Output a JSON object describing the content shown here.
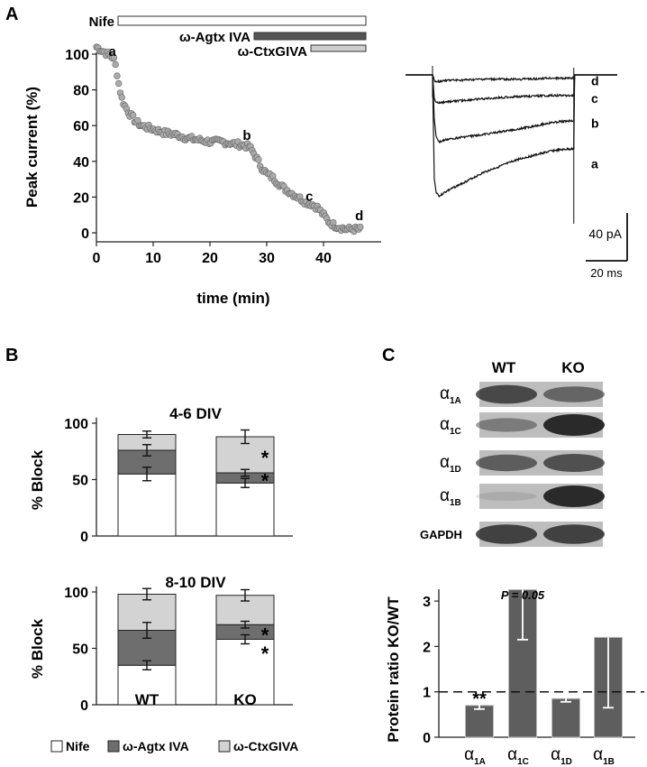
{
  "colors": {
    "nife": "#ffffff",
    "agtx": "#6e6e6e",
    "ctx": "#d3d3d3",
    "dot": "#aaaaaa",
    "blot_bg": "#bdbdbd"
  },
  "panel_a": {
    "label": "A",
    "drugs": [
      "Nife",
      "ω-Agtx IVA",
      "ω-CtxGIVA"
    ],
    "point_labels": [
      {
        "t": "a",
        "x": 2.8,
        "y": 99
      },
      {
        "t": "b",
        "x": 26.5,
        "y": 52
      },
      {
        "t": "c",
        "x": 37.5,
        "y": 18
      },
      {
        "t": "d",
        "x": 46.3,
        "y": 7
      }
    ],
    "scale_bar": {
      "current": "40 pA",
      "time": "20 ms"
    },
    "trace_labels": [
      "d",
      "c",
      "b",
      "a"
    ]
  },
  "panel_b": {
    "label": "B",
    "legend": [
      "Nife",
      "ω-Agtx IVA",
      "ω-CtxGIVA"
    ]
  },
  "panel_c": {
    "label": "C",
    "blot_headers": [
      "WT",
      "KO"
    ],
    "blot_rows": [
      {
        "greek": "α",
        "sub": "1A",
        "wt": 0.8,
        "ko": 0.6
      },
      {
        "greek": "α",
        "sub": "1C",
        "wt": 0.45,
        "ko": 1.0
      },
      {
        "greek": "α",
        "sub": "1D",
        "wt": 0.65,
        "ko": 0.75
      },
      {
        "greek": "α",
        "sub": "1B",
        "wt": 0.12,
        "ko": 1.0
      },
      {
        "label": "GAPDH",
        "wt": 0.85,
        "ko": 0.85
      }
    ],
    "p_value": "P = 0.05",
    "stars": "**"
  },
  "chart_data": [
    {
      "type": "scatter",
      "id": "timecourse",
      "xlabel": "time (min)",
      "ylabel": "Peak current (%)",
      "xlim": [
        0,
        50
      ],
      "ylim": [
        0,
        100
      ],
      "xticks": [
        0,
        10,
        20,
        30,
        40
      ],
      "yticks": [
        0,
        20,
        40,
        60,
        80,
        100
      ],
      "series_profile": {
        "x": [
          0,
          1,
          2,
          3,
          3.5,
          4,
          4.5,
          5,
          6,
          7,
          8,
          10,
          12,
          14,
          16,
          18,
          20,
          22,
          24,
          26,
          27,
          28,
          29,
          30,
          31,
          32,
          33,
          34,
          35,
          36,
          37,
          38,
          39,
          40,
          41,
          42,
          43,
          44,
          45,
          46.5
        ],
        "y": [
          104,
          102,
          100,
          98,
          92,
          82,
          75,
          71,
          66,
          62,
          60,
          58,
          56,
          55,
          53,
          52,
          51,
          51,
          50,
          49,
          48,
          43,
          37,
          33,
          31,
          28,
          25,
          23,
          21,
          19,
          17,
          16,
          14,
          10,
          6,
          4,
          3,
          2,
          2,
          2
        ]
      }
    },
    {
      "type": "line",
      "id": "traces",
      "x_ms": [
        0,
        2,
        4,
        8,
        15,
        30,
        60,
        100,
        140,
        165,
        166,
        175
      ],
      "series": [
        {
          "name": "a",
          "label": "a",
          "y_pA": [
            0,
            -95,
            -108,
            -112,
            -108,
            -102,
            -90,
            -78,
            -70,
            -68,
            0,
            0
          ]
        },
        {
          "name": "b",
          "label": "b",
          "y_pA": [
            0,
            -40,
            -57,
            -62,
            -60,
            -58,
            -55,
            -50,
            -44,
            -42,
            0,
            0
          ]
        },
        {
          "name": "c",
          "label": "c",
          "y_pA": [
            0,
            -22,
            -25,
            -26,
            -25,
            -24,
            -22,
            -20,
            -19,
            -19,
            0,
            0
          ]
        },
        {
          "name": "d",
          "label": "d",
          "y_pA": [
            0,
            -5,
            -6,
            -6,
            -5,
            -5,
            -4,
            -4,
            -3,
            -3,
            0,
            0
          ]
        }
      ]
    },
    {
      "type": "bar",
      "stacked": true,
      "id": "block_4_6",
      "title": "4-6 DIV",
      "ylabel": "% Block",
      "categories": [
        "WT",
        "KO"
      ],
      "ylim": [
        0,
        100
      ],
      "yticks": [
        0,
        50,
        100
      ],
      "series": [
        {
          "name": "Nife",
          "values": [
            55,
            47
          ],
          "errors": [
            6,
            4
          ]
        },
        {
          "name": "ω-Agtx IVA",
          "values": [
            21,
            9
          ],
          "errors": [
            5,
            3
          ]
        },
        {
          "name": "ω-CtxGIVA",
          "values": [
            14,
            32
          ],
          "errors": [
            3,
            6
          ]
        }
      ],
      "stars": [
        {
          "category": "KO",
          "segment": 2,
          "text": "*"
        },
        {
          "category": "KO",
          "segment": 1,
          "text": "*"
        }
      ]
    },
    {
      "type": "bar",
      "stacked": true,
      "id": "block_8_10",
      "title": "8-10 DIV",
      "ylabel": "% Block",
      "categories": [
        "WT",
        "KO"
      ],
      "ylim": [
        0,
        100
      ],
      "yticks": [
        0,
        50,
        100
      ],
      "series": [
        {
          "name": "Nife",
          "values": [
            35,
            58
          ],
          "errors": [
            4,
            4
          ]
        },
        {
          "name": "ω-Agtx IVA",
          "values": [
            31,
            13
          ],
          "errors": [
            7,
            3
          ]
        },
        {
          "name": "ω-CtxGIVA",
          "values": [
            32,
            26
          ],
          "errors": [
            5,
            5
          ]
        }
      ],
      "stars": [
        {
          "category": "KO",
          "segment": 1,
          "text": "*"
        },
        {
          "category": "KO",
          "segment": 0,
          "text": "*"
        }
      ]
    },
    {
      "type": "bar",
      "id": "protein_ratio",
      "ylabel": "Protein ratio KO/WT",
      "categories": [
        "1A",
        "1C",
        "1D",
        "1B"
      ],
      "values": [
        0.7,
        3.25,
        0.85,
        2.2
      ],
      "err_low": [
        0.62,
        2.15,
        0.78,
        0.65
      ],
      "err_high": [
        0.88,
        3.25,
        0.92,
        2.2
      ],
      "ylim": [
        0,
        3.4
      ],
      "yticks": [
        0,
        1,
        2,
        3
      ],
      "reference_line": 1
    }
  ]
}
